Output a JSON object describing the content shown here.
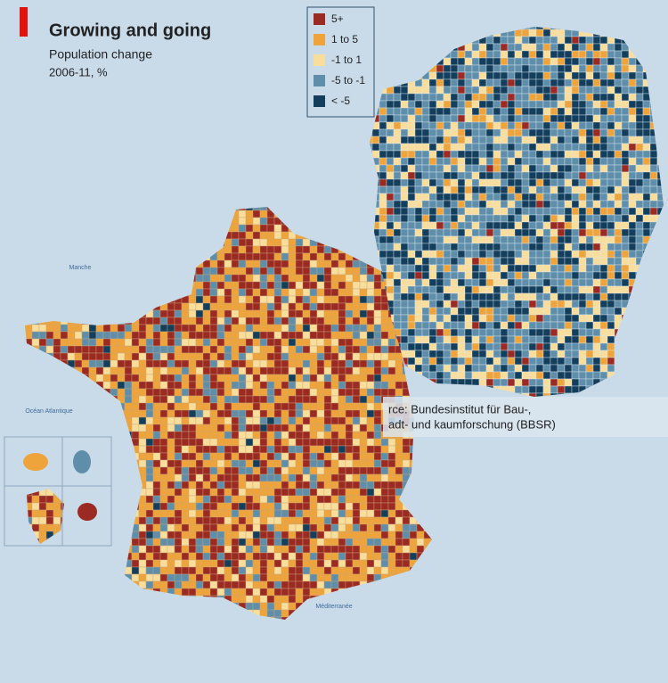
{
  "header": {
    "title": "Growing and going",
    "subtitle": "Population change",
    "period": "2006-11, %"
  },
  "legend": {
    "items": [
      {
        "label": "5+",
        "color": "#9b2a22"
      },
      {
        "label": "1 to 5",
        "color": "#eea43a"
      },
      {
        "label": "-1 to 1",
        "color": "#f9dd9a"
      },
      {
        "label": "-5 to -1",
        "color": "#5f8eaa"
      },
      {
        "label": "< -5",
        "color": "#133f5c"
      }
    ]
  },
  "source": [
    "rce: Bundesinstitut für Bau-,",
    "adt- und kaumforschung (BBSR)"
  ],
  "sea_labels": [
    "Manche",
    "Océan Atlantique",
    "Méditerranée"
  ]
}
